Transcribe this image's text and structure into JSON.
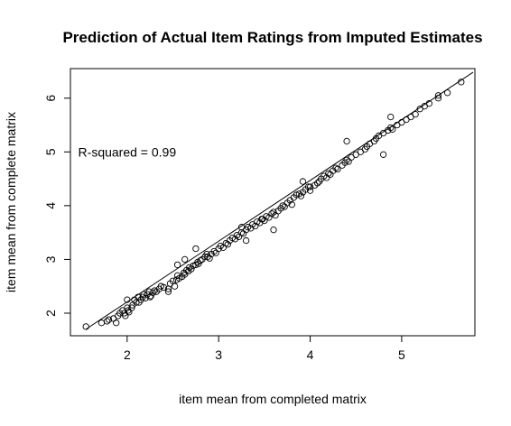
{
  "chart_data": {
    "type": "scatter",
    "title": "Prediction of Actual Item Ratings from Imputed Estimates",
    "xlabel": "item mean from completed matrix",
    "ylabel": "item mean from complete matrix",
    "xlim": [
      1.38,
      5.8
    ],
    "ylim": [
      1.58,
      6.55
    ],
    "x_ticks": [
      "2",
      "3",
      "4",
      "5"
    ],
    "y_ticks": [
      "2",
      "3",
      "4",
      "5",
      "6"
    ],
    "annotation": "R-squared = 0.99",
    "annotation_pos": [
      2.0,
      5.0
    ],
    "fit_line": {
      "intercept": -0.05,
      "slope": 1.13
    },
    "marker": "open-circle",
    "series": [
      {
        "x": [
          1.55,
          1.72,
          1.78,
          1.85,
          1.88,
          1.9,
          1.92,
          1.95,
          1.97,
          1.98,
          2.0,
          2.01,
          2.02,
          2.05,
          2.06,
          2.08,
          2.1,
          2.12,
          2.13,
          2.15,
          2.17,
          2.18,
          2.2,
          2.22,
          2.24,
          2.25,
          2.26,
          2.28,
          2.3,
          2.32,
          2.35,
          2.37,
          2.4,
          2.45,
          2.47,
          2.5,
          2.52,
          2.54,
          2.55,
          2.57,
          2.6,
          2.62,
          2.63,
          2.65,
          2.67,
          2.68,
          2.7,
          2.72,
          2.75,
          2.77,
          2.78,
          2.8,
          2.82,
          2.85,
          2.87,
          2.88,
          2.9,
          2.92,
          2.95,
          2.97,
          3.0,
          3.02,
          3.05,
          3.08,
          3.1,
          3.12,
          3.15,
          3.18,
          3.2,
          3.22,
          3.25,
          3.27,
          3.3,
          3.32,
          3.35,
          3.37,
          3.4,
          3.42,
          3.45,
          3.47,
          3.5,
          3.52,
          3.55,
          3.58,
          3.6,
          3.62,
          3.65,
          3.68,
          3.7,
          3.72,
          3.75,
          3.78,
          3.8,
          3.82,
          3.85,
          3.88,
          3.9,
          3.92,
          3.95,
          3.98,
          4.0,
          4.05,
          4.08,
          4.1,
          4.12,
          4.15,
          4.18,
          4.2,
          4.22,
          4.25,
          4.28,
          4.3,
          4.35,
          4.38,
          4.4,
          4.42,
          4.45,
          4.5,
          4.55,
          4.6,
          4.62,
          4.65,
          4.7,
          4.72,
          4.75,
          4.8,
          4.85,
          4.88,
          4.9,
          4.95,
          5.0,
          5.05,
          5.1,
          5.15,
          5.2,
          5.25,
          5.3,
          5.4,
          5.5,
          5.65,
          1.8,
          2.45,
          2.63,
          2.75,
          3.3,
          3.48,
          3.6,
          3.92,
          4.0,
          4.4,
          4.8,
          4.88,
          5.4,
          2.0,
          2.55,
          3.25
        ],
        "y": [
          1.75,
          1.82,
          1.85,
          1.9,
          1.82,
          1.95,
          2.0,
          2.05,
          2.0,
          1.95,
          2.1,
          2.05,
          2.02,
          2.1,
          2.15,
          2.25,
          2.2,
          2.3,
          2.2,
          2.25,
          2.3,
          2.35,
          2.28,
          2.35,
          2.4,
          2.3,
          2.32,
          2.38,
          2.42,
          2.4,
          2.45,
          2.5,
          2.48,
          2.45,
          2.55,
          2.6,
          2.5,
          2.62,
          2.7,
          2.65,
          2.68,
          2.75,
          2.72,
          2.8,
          2.78,
          2.85,
          2.82,
          2.88,
          2.9,
          2.95,
          2.92,
          2.98,
          3.0,
          3.05,
          3.1,
          3.05,
          3.02,
          3.1,
          3.15,
          3.12,
          3.2,
          3.25,
          3.22,
          3.3,
          3.28,
          3.35,
          3.4,
          3.38,
          3.45,
          3.42,
          3.5,
          3.48,
          3.55,
          3.6,
          3.58,
          3.65,
          3.62,
          3.7,
          3.68,
          3.75,
          3.72,
          3.8,
          3.78,
          3.85,
          3.88,
          3.82,
          3.9,
          3.95,
          4.0,
          3.98,
          4.05,
          4.1,
          4.02,
          4.15,
          4.2,
          4.22,
          4.18,
          4.25,
          4.3,
          4.35,
          4.28,
          4.38,
          4.42,
          4.45,
          4.5,
          4.55,
          4.52,
          4.6,
          4.58,
          4.65,
          4.7,
          4.68,
          4.75,
          4.8,
          4.85,
          4.82,
          4.9,
          4.95,
          5.0,
          5.05,
          5.1,
          5.15,
          5.2,
          5.25,
          5.3,
          5.35,
          5.4,
          5.45,
          5.42,
          5.5,
          5.55,
          5.6,
          5.65,
          5.7,
          5.8,
          5.85,
          5.9,
          6.0,
          6.1,
          6.3,
          1.88,
          2.4,
          3.0,
          3.2,
          3.35,
          3.75,
          3.55,
          4.45,
          4.35,
          5.2,
          4.95,
          5.65,
          6.05,
          2.25,
          2.9,
          3.6
        ]
      }
    ]
  }
}
